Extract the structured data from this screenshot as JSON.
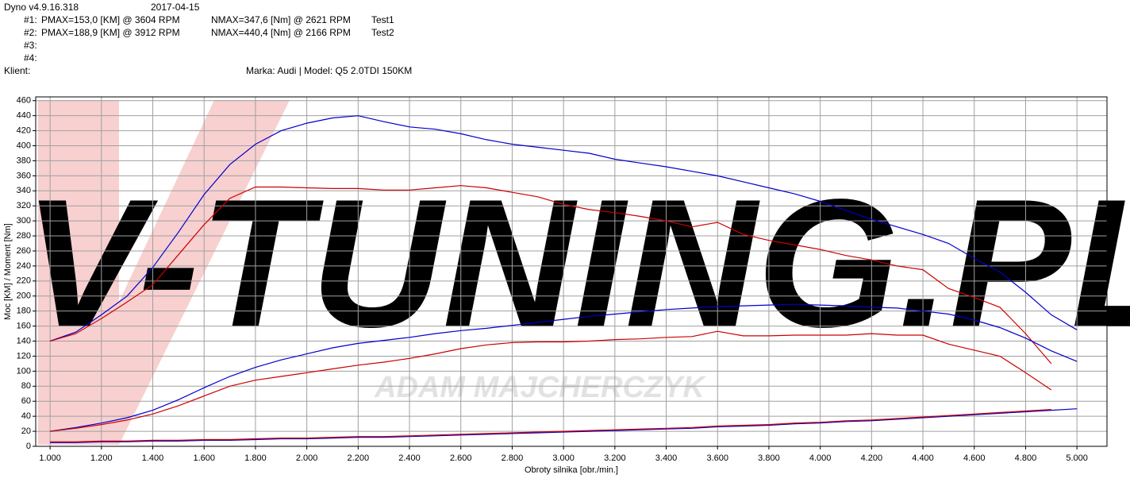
{
  "header": {
    "app": "Dyno v4.9.16.318",
    "date": "2017-04-15",
    "rows": [
      {
        "id": "#1:",
        "pmax": "PMAX=153,0 [KM] @ 3604 RPM",
        "nmax": "NMAX=347,6 [Nm] @ 2621 RPM",
        "test": "Test1"
      },
      {
        "id": "#2:",
        "pmax": "PMAX=188,9 [KM] @ 3912 RPM",
        "nmax": "NMAX=440,4 [Nm] @ 2166 RPM",
        "test": "Test2"
      },
      {
        "id": "#3:"
      },
      {
        "id": "#4:"
      }
    ],
    "client_label": "Klient:",
    "vehicle": "Marka: Audi | Model: Q5 2.0TDI  150KM"
  },
  "chart_data": {
    "type": "line",
    "y_label": "Moc [KM] / Moment [Nm]",
    "x_label": "Obroty silnika [obr./min.]",
    "annotations": [
      "V-TUNING.PL",
      "ADAM MAJCHERCZYK"
    ],
    "grid": true,
    "xlim": [
      944,
      5117
    ],
    "ylim": [
      0,
      465
    ],
    "xticks": [
      {
        "value": 1000,
        "label": "1.000"
      },
      {
        "value": 1200,
        "label": "1.200"
      },
      {
        "value": 1400,
        "label": "1.400"
      },
      {
        "value": 1600,
        "label": "1.600"
      },
      {
        "value": 1800,
        "label": "1.800"
      },
      {
        "value": 2000,
        "label": "2.000"
      },
      {
        "value": 2200,
        "label": "2.200"
      },
      {
        "value": 2400,
        "label": "2.400"
      },
      {
        "value": 2600,
        "label": "2.600"
      },
      {
        "value": 2800,
        "label": "2.800"
      },
      {
        "value": 3000,
        "label": "3.000"
      },
      {
        "value": 3200,
        "label": "3.200"
      },
      {
        "value": 3400,
        "label": "3.400"
      },
      {
        "value": 3600,
        "label": "3.600"
      },
      {
        "value": 3800,
        "label": "3.800"
      },
      {
        "value": 4000,
        "label": "4.000"
      },
      {
        "value": 4200,
        "label": "4.200"
      },
      {
        "value": 4400,
        "label": "4.400"
      },
      {
        "value": 4600,
        "label": "4.600"
      },
      {
        "value": 4800,
        "label": "4.800"
      },
      {
        "value": 5000,
        "label": "5.000"
      }
    ],
    "yticks": [
      0,
      20,
      40,
      60,
      80,
      100,
      120,
      140,
      160,
      180,
      200,
      220,
      240,
      260,
      280,
      300,
      320,
      340,
      360,
      380,
      400,
      420,
      440,
      460
    ],
    "x": [
      1000,
      1100,
      1200,
      1300,
      1400,
      1500,
      1600,
      1700,
      1800,
      1900,
      2000,
      2100,
      2200,
      2300,
      2400,
      2500,
      2600,
      2700,
      2800,
      2900,
      3000,
      3100,
      3200,
      3300,
      3400,
      3500,
      3600,
      3700,
      3800,
      3900,
      4000,
      4100,
      4200,
      4300,
      4400,
      4500,
      4600,
      4700,
      4800,
      4900,
      5000
    ],
    "series": [
      {
        "color": "#0000cc",
        "values": [
          140,
          152,
          175,
          200,
          238,
          285,
          335,
          375,
          402,
          420,
          430,
          437,
          440,
          432,
          425,
          422,
          416,
          408,
          402,
          398,
          394,
          390,
          382,
          377,
          372,
          366,
          360,
          352,
          344,
          336,
          326,
          314,
          302,
          292,
          282,
          270,
          250,
          232,
          205,
          175,
          155
        ]
      },
      {
        "color": "#cc0000",
        "values": [
          140,
          150,
          170,
          192,
          215,
          255,
          295,
          330,
          345,
          345,
          344,
          343,
          343,
          341,
          341,
          344,
          347,
          344,
          338,
          332,
          322,
          315,
          311,
          306,
          300,
          292,
          298,
          282,
          274,
          268,
          262,
          254,
          248,
          240,
          235,
          210,
          198,
          185,
          150,
          110,
          null
        ]
      },
      {
        "color": "#0000cc",
        "values": [
          20,
          25,
          31,
          38,
          48,
          62,
          78,
          93,
          105,
          115,
          123,
          131,
          137,
          141,
          145,
          150,
          154,
          157,
          161,
          165,
          169,
          173,
          176,
          179,
          182,
          184,
          186,
          187,
          188,
          189,
          188,
          187,
          185,
          184,
          180,
          176,
          168,
          158,
          144,
          127,
          113
        ]
      },
      {
        "color": "#cc0000",
        "values": [
          20,
          24,
          29,
          35,
          43,
          54,
          67,
          80,
          88,
          93,
          98,
          103,
          108,
          112,
          117,
          123,
          130,
          135,
          138,
          139,
          139,
          140,
          142,
          143,
          145,
          146,
          153,
          147,
          147,
          148,
          148,
          148,
          150,
          148,
          148,
          136,
          128,
          120,
          98,
          75,
          null
        ]
      },
      {
        "color": "#0000cc",
        "values": [
          5,
          5,
          6,
          6,
          7,
          7,
          8,
          8,
          9,
          10,
          10,
          11,
          12,
          12,
          13,
          14,
          15,
          16,
          17,
          18,
          19,
          20,
          21,
          22,
          23,
          24,
          26,
          27,
          28,
          30,
          31,
          33,
          34,
          36,
          38,
          40,
          42,
          44,
          46,
          48,
          50
        ]
      },
      {
        "color": "#cc0000",
        "values": [
          6,
          6,
          7,
          7,
          8,
          8,
          9,
          9,
          10,
          11,
          11,
          12,
          13,
          13,
          14,
          15,
          16,
          17,
          18,
          19,
          20,
          21,
          22,
          23,
          24,
          25,
          27,
          28,
          29,
          31,
          32,
          34,
          35,
          37,
          39,
          41,
          43,
          45,
          47,
          49,
          null
        ]
      }
    ]
  }
}
